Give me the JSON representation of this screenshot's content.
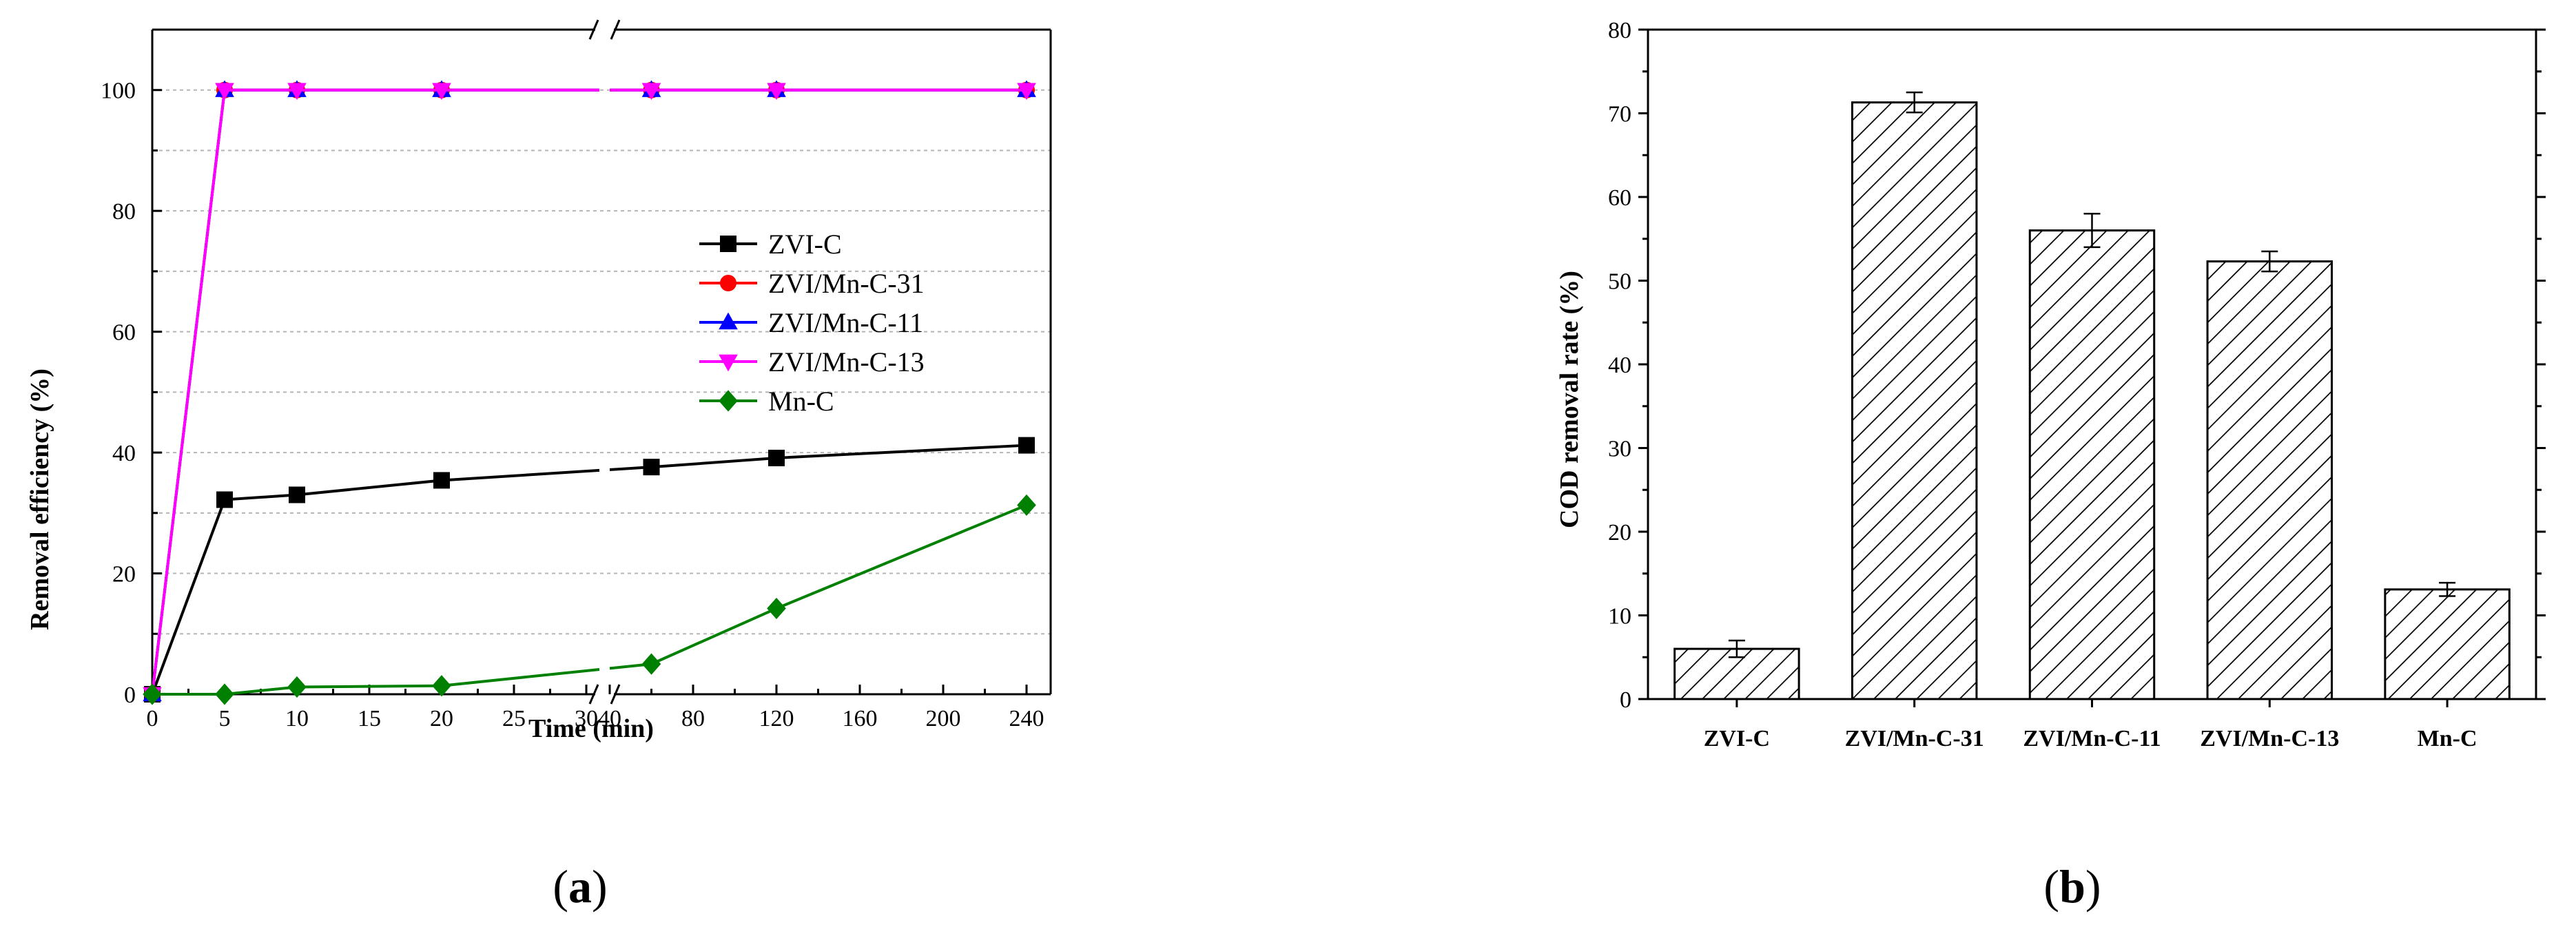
{
  "chart_data": [
    {
      "type": "line",
      "panel_label_open": "(",
      "panel_letter": "a",
      "panel_label_close": ")",
      "title": "",
      "xlabel": "Time (min)",
      "ylabel": "Removal efficiency (%)",
      "x_tick_labels": [
        "0",
        "5",
        "10",
        "15",
        "20",
        "25",
        "30",
        "40",
        "80",
        "120",
        "160",
        "200",
        "240"
      ],
      "y_ticks": [
        "0",
        "20",
        "40",
        "60",
        "80",
        "100"
      ],
      "ylim": [
        0,
        110
      ],
      "axis_break": "between 30 and 40 min",
      "grid": true,
      "legend_placement": "center-right",
      "x": [
        0,
        5,
        10,
        20,
        60,
        120,
        240
      ],
      "series": [
        {
          "name": "ZVI-C",
          "color": "#000000",
          "marker": "square",
          "values": [
            0,
            32.2,
            33,
            35.4,
            37.6,
            39.1,
            41.2
          ]
        },
        {
          "name": "ZVI/Mn-C-31",
          "color": "#ff0000",
          "marker": "circle",
          "values": [
            0,
            100,
            100,
            100,
            100,
            100,
            100
          ]
        },
        {
          "name": "ZVI/Mn-C-11",
          "color": "#0000ff",
          "marker": "triangle-up",
          "values": [
            0,
            100,
            100,
            100,
            100,
            100,
            100
          ]
        },
        {
          "name": "ZVI/Mn-C-13",
          "color": "#ff00ff",
          "marker": "triangle-down",
          "values": [
            0,
            100,
            100,
            100,
            100,
            100,
            100
          ]
        },
        {
          "name": "Mn-C",
          "color": "#008000",
          "marker": "diamond",
          "values": [
            0,
            0,
            1.2,
            1.4,
            5,
            14.2,
            31.3
          ]
        }
      ]
    },
    {
      "type": "bar",
      "panel_label_open": "(",
      "panel_letter": "b",
      "panel_label_close": ")",
      "title": "",
      "xlabel": "",
      "ylabel": "COD removal rate (%)",
      "ylim": [
        0,
        80
      ],
      "y_ticks": [
        "0",
        "10",
        "20",
        "30",
        "40",
        "50",
        "60",
        "70",
        "80"
      ],
      "categories": [
        "ZVI-C",
        "ZVI/Mn-C-31",
        "ZVI/Mn-C-11",
        "ZVI/Mn-C-13",
        "Mn-C"
      ],
      "values": [
        6,
        71.3,
        56,
        52.3,
        13.1
      ],
      "error": [
        1,
        1.2,
        2,
        1.2,
        0.8
      ],
      "fill_pattern": "diagonal-hatch",
      "grid": false
    }
  ]
}
